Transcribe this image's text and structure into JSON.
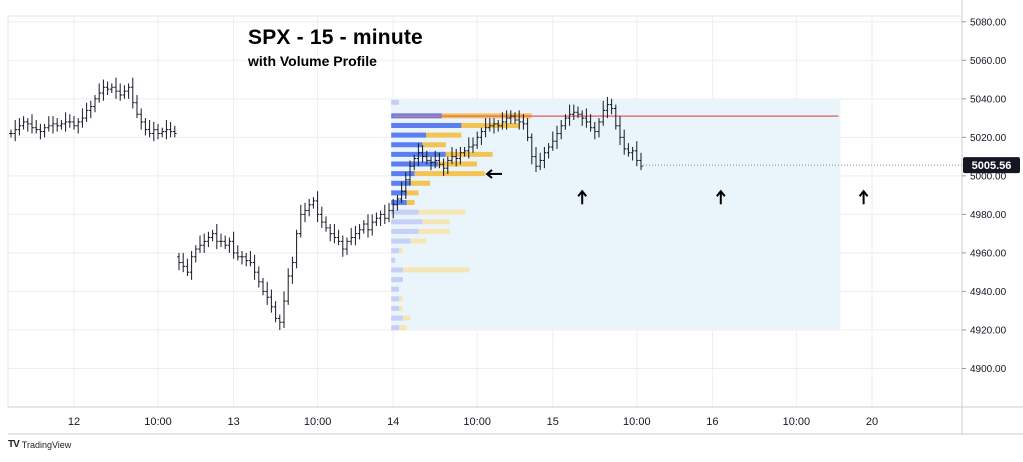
{
  "chart_data": {
    "type": "ohlc",
    "title": "SPX - 15 - minute",
    "subtitle": "with Volume Profile",
    "y_axis": {
      "position": "right",
      "ticks": [
        5080,
        5060,
        5040,
        5020,
        5000,
        4980,
        4960,
        4940,
        4920,
        4900
      ],
      "tick_labels": [
        "5080.00",
        "5060.00",
        "5040.00",
        "5020.00",
        "5000.00",
        "4980.00",
        "4960.00",
        "4940.00",
        "4920.00",
        "4900.00"
      ],
      "range": [
        4880,
        5083
      ]
    },
    "x_axis": {
      "tick_labels": [
        {
          "label": "12",
          "bar": 15
        },
        {
          "label": "10:00",
          "bar": 35
        },
        {
          "label": "13",
          "bar": 53
        },
        {
          "label": "10:00",
          "bar": 73
        },
        {
          "label": "14",
          "bar": 91
        },
        {
          "label": "10:00",
          "bar": 111
        },
        {
          "label": "15",
          "bar": 129
        },
        {
          "label": "10:00",
          "bar": 149
        },
        {
          "label": "16",
          "bar": 167
        },
        {
          "label": "10:00",
          "bar": 187
        },
        {
          "label": "20",
          "bar": 205
        }
      ]
    },
    "grid": true,
    "last_price": {
      "value": 5005.56,
      "label": "5005.56"
    },
    "closes": [
      5022,
      5024,
      5026,
      5028,
      5027,
      5025,
      5024,
      5023,
      5025,
      5026,
      5027,
      5026,
      5027,
      5028,
      5028,
      5026,
      5028,
      5030,
      5034,
      5036,
      5040,
      5043,
      5046,
      5045,
      5046,
      5044,
      5042,
      5044,
      5046,
      5038,
      5032,
      5028,
      5024,
      5022,
      5024,
      5022,
      5023,
      5024,
      5023,
      5022,
      4955,
      4953,
      4950,
      4958,
      4962,
      4964,
      4966,
      4968,
      4970,
      4966,
      4966,
      4964,
      4966,
      4960,
      4958,
      4958,
      4956,
      4955,
      4950,
      4945,
      4940,
      4937,
      4932,
      4926,
      4924,
      4935,
      4948,
      4955,
      4970,
      4980,
      4982,
      4985,
      4987,
      4980,
      4976,
      4973,
      4970,
      4968,
      4966,
      4962,
      4966,
      4968,
      4970,
      4972,
      4975,
      4972,
      4976,
      4978,
      4980,
      4978,
      4982,
      4985,
      4988,
      4992,
      4998,
      5005,
      5009,
      5012,
      5010,
      5008,
      5007,
      5008,
      5006,
      5004,
      5008,
      5010,
      5009,
      5012,
      5013,
      5015,
      5016,
      5020,
      5023,
      5025,
      5026,
      5027,
      5026,
      5028,
      5030,
      5031,
      5029,
      5028,
      5027,
      5020,
      5010,
      5005,
      5008,
      5012,
      5015,
      5018,
      5022,
      5026,
      5030,
      5032,
      5033,
      5032,
      5030,
      5028,
      5025,
      5023,
      5028,
      5034,
      5037,
      5035,
      5026,
      5020,
      5014,
      5012,
      5013,
      5008,
      5005
    ],
    "volume_profile": {
      "range": [
        4920,
        5040
      ],
      "rows": [
        {
          "price": 5038,
          "buy": 2,
          "sell": 0,
          "highlight": false
        },
        {
          "price": 5031,
          "buy": 13,
          "sell": 23,
          "highlight": true
        },
        {
          "price": 5026,
          "buy": 18,
          "sell": 15,
          "highlight": true
        },
        {
          "price": 5021,
          "buy": 9,
          "sell": 9,
          "highlight": true
        },
        {
          "price": 5016,
          "buy": 8,
          "sell": 6,
          "highlight": true
        },
        {
          "price": 5011,
          "buy": 14,
          "sell": 12,
          "highlight": true
        },
        {
          "price": 5006,
          "buy": 12,
          "sell": 10,
          "highlight": true
        },
        {
          "price": 5001,
          "buy": 6,
          "sell": 18,
          "highlight": true
        },
        {
          "price": 4996,
          "buy": 5,
          "sell": 5,
          "highlight": true
        },
        {
          "price": 4991,
          "buy": 4,
          "sell": 3,
          "highlight": true
        },
        {
          "price": 4986,
          "buy": 4,
          "sell": 2,
          "highlight": true
        },
        {
          "price": 4981,
          "buy": 7,
          "sell": 12,
          "highlight": false
        },
        {
          "price": 4976,
          "buy": 8,
          "sell": 7,
          "highlight": false
        },
        {
          "price": 4971,
          "buy": 7,
          "sell": 8,
          "highlight": false
        },
        {
          "price": 4966,
          "buy": 5,
          "sell": 4,
          "highlight": false
        },
        {
          "price": 4961,
          "buy": 2,
          "sell": 1,
          "highlight": false
        },
        {
          "price": 4956,
          "buy": 1,
          "sell": 0,
          "highlight": false
        },
        {
          "price": 4951,
          "buy": 3,
          "sell": 17,
          "highlight": false
        },
        {
          "price": 4946,
          "buy": 3,
          "sell": 0,
          "highlight": false
        },
        {
          "price": 4941,
          "buy": 2,
          "sell": 0,
          "highlight": false
        },
        {
          "price": 4936,
          "buy": 2,
          "sell": 1,
          "highlight": false
        },
        {
          "price": 4931,
          "buy": 2,
          "sell": 1,
          "highlight": false
        },
        {
          "price": 4926,
          "buy": 3,
          "sell": 2,
          "highlight": false
        },
        {
          "price": 4921,
          "buy": 2,
          "sell": 2,
          "highlight": false
        }
      ]
    },
    "annotations": {
      "horizontal_line": {
        "price": 5031,
        "from_bar": 91,
        "to_bar": 197,
        "color": "#e57373"
      },
      "arrows": [
        {
          "direction": "left",
          "price": 5001,
          "bar": 115
        },
        {
          "direction": "up",
          "price": 4992,
          "bar": 136
        },
        {
          "direction": "up",
          "price": 4992,
          "bar": 169
        },
        {
          "direction": "up",
          "price": 4992,
          "bar": 203
        }
      ]
    },
    "colors": {
      "bar": "#131722",
      "buy": "#5b7ff1",
      "sell": "#f3c452",
      "buy_faded": "#c5cff8",
      "sell_faded": "#f7e6b5",
      "profile_background": "#eaf4fb",
      "grid": "#eeeeee",
      "last_price_bg": "#131722",
      "last_price_fg": "#ffffff"
    }
  },
  "branding": {
    "logo": "TV",
    "name": "TradingView"
  }
}
